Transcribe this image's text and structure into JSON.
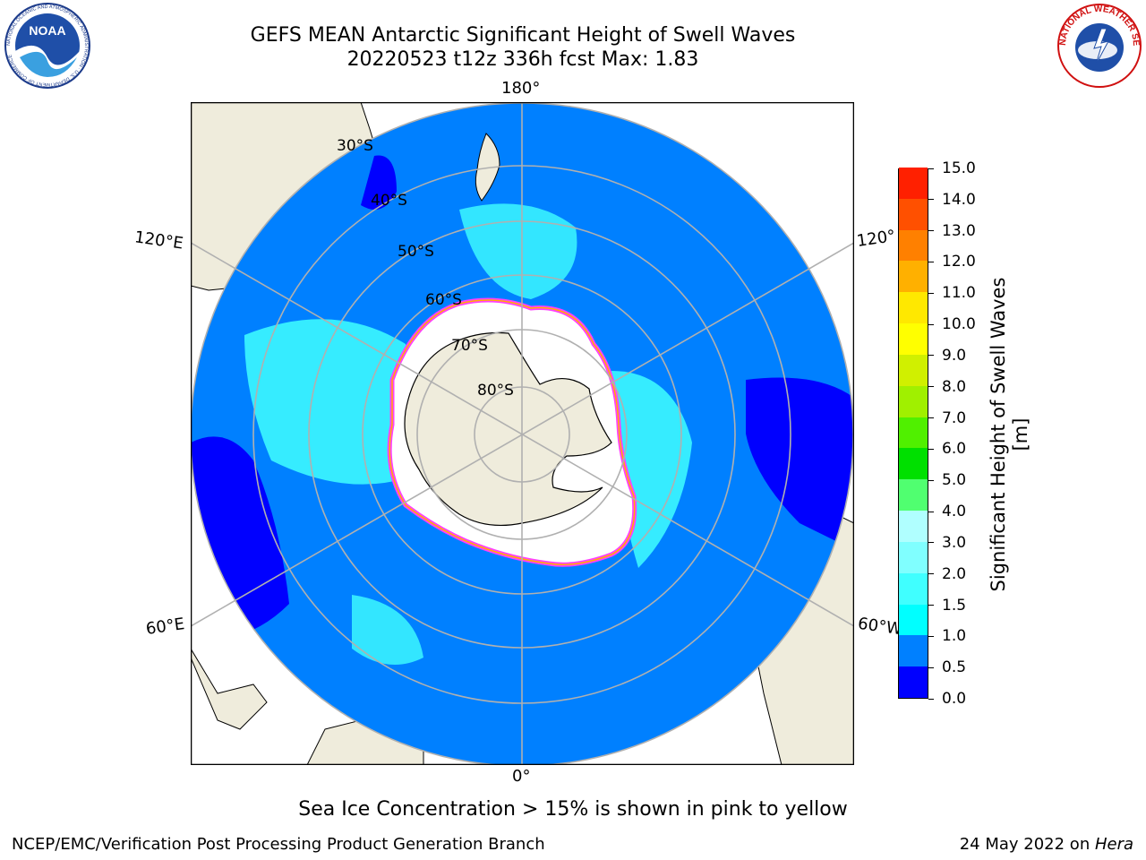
{
  "header": {
    "title_line1": "GEFS MEAN Antarctic Significant Height of Swell Waves",
    "title_line2": "20220523 t12z 336h fcst   Max: 1.83"
  },
  "logos": {
    "noaa_text": "NOAA",
    "noaa_ring_text": "NATIONAL OCEANIC AND ATMOSPHERIC ADMINISTRATION · U.S. DEPARTMENT OF COMMERCE",
    "nws_ring_text": "NATIONAL WEATHER SERVICE"
  },
  "map": {
    "projection": "south-polar-stereographic",
    "longitude_labels": {
      "top": "180°",
      "bottom": "0°",
      "left_upper": "120°E",
      "left_lower": "60°E",
      "right_upper": "120°",
      "right_lower": "60°W"
    },
    "latitude_labels": [
      "30°S",
      "40°S",
      "50°S",
      "60°S",
      "70°S",
      "80°S"
    ],
    "colors": {
      "land": "#efecdc",
      "ice_free_ocean": "#0080ff",
      "graticule": "#b0b0b0",
      "ice_edge": "#ff40ff",
      "ice_interior": "#ffffff"
    }
  },
  "colorbar": {
    "title": "Significant Height of Swell Waves [m]",
    "ticks": [
      "0.0",
      "0.5",
      "1.0",
      "1.5",
      "2.0",
      "3.0",
      "4.0",
      "5.0",
      "6.0",
      "7.0",
      "8.0",
      "9.0",
      "10.0",
      "11.0",
      "12.0",
      "13.0",
      "14.0",
      "15.0"
    ],
    "colors": [
      "#0000ff",
      "#0080ff",
      "#00ffff",
      "#40ffff",
      "#80ffff",
      "#b0ffff",
      "#50ff70",
      "#00e000",
      "#50f000",
      "#a0f000",
      "#d0f000",
      "#ffff00",
      "#ffe800",
      "#ffb000",
      "#ff8000",
      "#ff5000",
      "#ff2000",
      "#ff0000"
    ]
  },
  "footer": {
    "ice_note": "Sea Ice Concentration > 15% is shown in pink to yellow",
    "branch": "NCEP/EMC/Verification Post Processing Product Generation Branch",
    "date": "24 May 2022 on ",
    "machine": "Hera"
  }
}
